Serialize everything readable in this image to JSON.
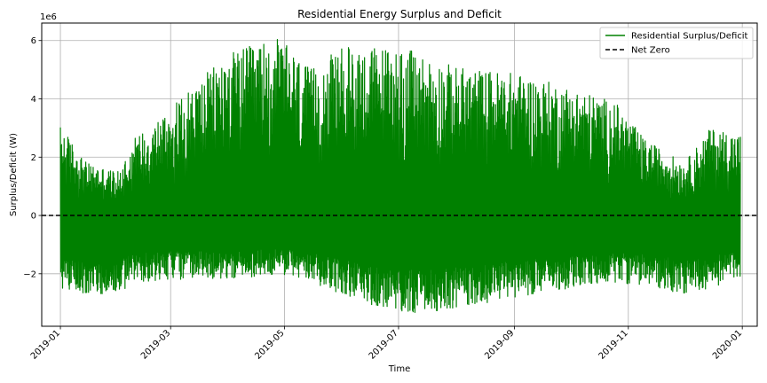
{
  "chart_data": {
    "type": "line",
    "title": "Residential Energy Surplus and Deficit",
    "xlabel": "Time",
    "ylabel": "Surplus/Deficit (W)",
    "y_scale_note": "1e6",
    "x_range": [
      "2018-12-22",
      "2020-01-09"
    ],
    "ylim": [
      -3.8,
      6.6
    ],
    "y_ticks": [
      -2,
      0,
      2,
      4,
      6
    ],
    "y_tick_labels": [
      "−2",
      "0",
      "2",
      "4",
      "6"
    ],
    "x_ticks": [
      "2019-01-01",
      "2019-03-01",
      "2019-05-01",
      "2019-07-01",
      "2019-09-01",
      "2019-11-01",
      "2020-01-01"
    ],
    "x_tick_labels": [
      "2019-01",
      "2019-03",
      "2019-05",
      "2019-07",
      "2019-09",
      "2019-11",
      "2020-01"
    ],
    "grid": true,
    "legend_placement": "top-right",
    "series": [
      {
        "name": "Residential Surplus/Deficit",
        "color": "#008000",
        "style": "solid",
        "envelope": {
          "dates": [
            "2019-01-01",
            "2019-01-15",
            "2019-02-01",
            "2019-02-10",
            "2019-03-01",
            "2019-04-01",
            "2019-04-28",
            "2019-05-15",
            "2019-06-01",
            "2019-07-01",
            "2019-08-01",
            "2019-09-01",
            "2019-10-01",
            "2019-10-25",
            "2019-11-10",
            "2019-12-01",
            "2019-12-15",
            "2019-12-31"
          ],
          "max": [
            3.1,
            1.8,
            1.5,
            2.7,
            3.7,
            5.6,
            6.1,
            5.0,
            5.8,
            5.8,
            5.1,
            4.9,
            4.4,
            3.9,
            2.6,
            1.8,
            3.0,
            2.8
          ],
          "min": [
            -2.5,
            -2.7,
            -2.7,
            -2.3,
            -2.2,
            -2.2,
            -2.0,
            -2.3,
            -2.7,
            -3.4,
            -3.2,
            -2.8,
            -2.5,
            -2.3,
            -2.4,
            -2.7,
            -2.5,
            -2.1
          ]
        }
      },
      {
        "name": "Net Zero",
        "color": "#000000",
        "style": "dashed",
        "y": 0
      }
    ]
  }
}
